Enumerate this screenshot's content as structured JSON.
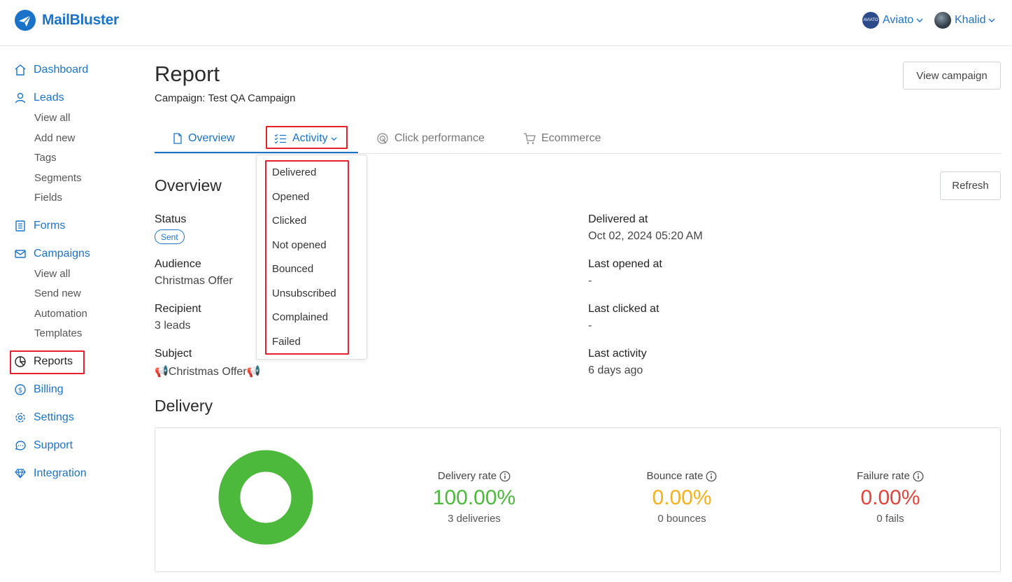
{
  "app": {
    "name": "MailBluster"
  },
  "header": {
    "accounts": [
      {
        "label": "Aviato",
        "avatar_text": "AVIATO"
      },
      {
        "label": "Khalid"
      }
    ]
  },
  "sidebar": {
    "items": [
      {
        "label": "Dashboard",
        "icon": "home-icon"
      },
      {
        "label": "Leads",
        "icon": "user-icon",
        "sub": [
          "View all",
          "Add new",
          "Tags",
          "Segments",
          "Fields"
        ]
      },
      {
        "label": "Forms",
        "icon": "form-icon"
      },
      {
        "label": "Campaigns",
        "icon": "mail-icon",
        "sub": [
          "View all",
          "Send new",
          "Automation",
          "Templates"
        ]
      },
      {
        "label": "Reports",
        "icon": "pie-chart-icon",
        "active": true
      },
      {
        "label": "Billing",
        "icon": "dollar-icon"
      },
      {
        "label": "Settings",
        "icon": "gear-icon"
      },
      {
        "label": "Support",
        "icon": "chat-icon"
      },
      {
        "label": "Integration",
        "icon": "diamond-icon"
      }
    ]
  },
  "page": {
    "title": "Report",
    "campaign_line": "Campaign: Test QA Campaign",
    "view_campaign_label": "View campaign",
    "refresh_label": "Refresh"
  },
  "tabs": [
    {
      "label": "Overview",
      "icon": "document-icon"
    },
    {
      "label": "Activity",
      "icon": "checklist-icon"
    },
    {
      "label": "Click performance",
      "icon": "cursor-target-icon"
    },
    {
      "label": "Ecommerce",
      "icon": "cart-icon"
    }
  ],
  "activity_menu": [
    "Delivered",
    "Opened",
    "Clicked",
    "Not opened",
    "Bounced",
    "Unsubscribed",
    "Complained",
    "Failed"
  ],
  "overview": {
    "title": "Overview",
    "status_label": "Status",
    "status_value": "Sent",
    "left": [
      {
        "label": "Audience",
        "value": "Christmas Offer"
      },
      {
        "label": "Recipient",
        "value": "3 leads"
      },
      {
        "label": "Subject",
        "value": "📢Christmas Offer📢"
      }
    ],
    "right": [
      {
        "label": "Delivered at",
        "value": "Oct 02, 2024 05:20 AM"
      },
      {
        "label": "Last opened at",
        "value": "-"
      },
      {
        "label": "Last clicked at",
        "value": "-"
      },
      {
        "label": "Last activity",
        "value": "6 days ago"
      }
    ]
  },
  "delivery": {
    "title": "Delivery",
    "stats": [
      {
        "label": "Delivery rate",
        "value": "100.00%",
        "sub": "3 deliveries",
        "color": "#4cb93c"
      },
      {
        "label": "Bounce rate",
        "value": "0.00%",
        "sub": "0 bounces",
        "color": "#f5b01c"
      },
      {
        "label": "Failure rate",
        "value": "0.00%",
        "sub": "0 fails",
        "color": "#e0443a"
      }
    ],
    "donut_delivered_fraction": 1.0,
    "donut_color": "#4cb93c"
  }
}
